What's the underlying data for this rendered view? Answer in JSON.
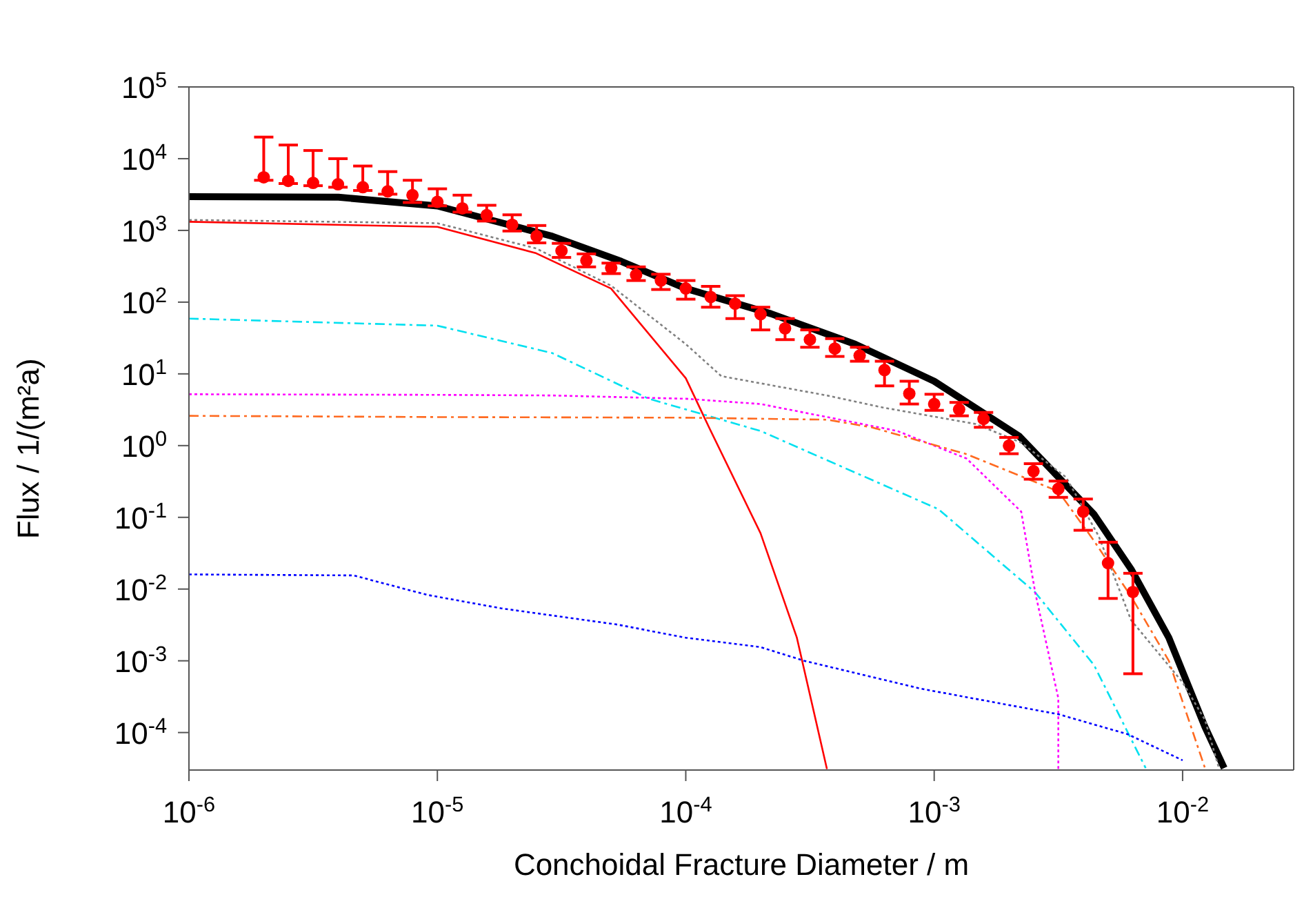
{
  "chart_data": {
    "type": "line",
    "xlabel": "Conchoidal Fracture Diameter / m",
    "ylabel": "Flux / 1/(m²a)",
    "log": "xy",
    "grid": false,
    "legend": false,
    "xlim": [
      1e-06,
      0.028
    ],
    "ylim": [
      3e-05,
      100000.0
    ],
    "xticks": [
      {
        "value": 1e-06,
        "label": "10$^{-6}$"
      },
      {
        "value": 1e-05,
        "label": "10$^{-5}$"
      },
      {
        "value": 0.0001,
        "label": "10$^{-4}$"
      },
      {
        "value": 0.001,
        "label": "10$^{-3}$"
      },
      {
        "value": 0.01,
        "label": "10$^{-2}$"
      }
    ],
    "yticks": [
      {
        "value": 0.0001,
        "label": "10$^{-4}$"
      },
      {
        "value": 0.001,
        "label": "10$^{-3}$"
      },
      {
        "value": 0.01,
        "label": "10$^{-2}$"
      },
      {
        "value": 0.1,
        "label": "10$^{-1}$"
      },
      {
        "value": 1,
        "label": "10$^{0}$"
      },
      {
        "value": 10,
        "label": "10$^{1}$"
      },
      {
        "value": 100,
        "label": "10$^{2}$"
      },
      {
        "value": 1000,
        "label": "10$^{3}$"
      },
      {
        "value": 10000,
        "label": "10$^{4}$"
      },
      {
        "value": 100000,
        "label": "10$^{5}$"
      }
    ],
    "series": [
      {
        "color": "#000000",
        "line_style": "solid",
        "x": [
          1e-06,
          4e-06,
          1e-05,
          2.9e-05,
          5.5e-05,
          0.0001,
          0.00022,
          0.00048,
          0.001,
          0.0022,
          0.0044,
          0.0062,
          0.0088,
          0.0123,
          0.0147
        ],
        "values": [
          2950,
          2900,
          2190,
          830,
          370,
          155,
          69,
          26,
          7.9,
          1.35,
          0.11,
          0.019,
          0.0021,
          0.00012,
          3.2e-05
        ]
      },
      {
        "color": "#808080",
        "line_style": "dotted",
        "x": [
          1e-06,
          1e-05,
          2.5e-05,
          5e-05,
          0.0001,
          0.000139,
          0.00037,
          0.00062,
          0.00147,
          0.00224,
          0.0034,
          0.0046,
          0.0062,
          0.01,
          0.0123,
          0.014
        ],
        "values": [
          1400,
          1260,
          560,
          170,
          26,
          9.3,
          5,
          3.4,
          2.0,
          1.1,
          0.36,
          0.054,
          0.0037,
          0.0005,
          0.00015,
          3.2e-05
        ]
      },
      {
        "color": "#ff0000",
        "line_style": "solid",
        "x": [
          1e-06,
          1e-05,
          2.5e-05,
          5e-05,
          0.0001,
          0.000124,
          0.0002,
          0.00028,
          0.00037
        ],
        "values": [
          1320,
          1120,
          480,
          155,
          8.7,
          1.8,
          0.06,
          0.0021,
          3.1e-05
        ]
      },
      {
        "color": "#00e0f0",
        "line_style": "dashed",
        "x": [
          1e-06,
          1e-05,
          2.9e-05,
          7.1e-05,
          0.0002,
          0.00104,
          0.00255,
          0.0044,
          0.0071
        ],
        "values": [
          59,
          47,
          19.5,
          4.5,
          1.6,
          0.13,
          0.009,
          0.00087,
          3.2e-05
        ]
      },
      {
        "color": "#ff00ff",
        "line_style": "dotted",
        "x": [
          1e-06,
          1e-05,
          2.9e-05,
          0.0001,
          0.0002,
          0.00037,
          0.00071,
          0.00135,
          0.00224,
          0.00255,
          0.00316,
          0.00316
        ],
        "values": [
          5.2,
          5.1,
          5.0,
          4.5,
          3.8,
          2.5,
          1.6,
          0.66,
          0.12,
          0.009,
          0.0003,
          3.1e-05
        ]
      },
      {
        "color": "#ff6a20",
        "line_style": "dashed",
        "x": [
          1e-06,
          1e-05,
          0.0001,
          0.00037,
          0.00056,
          0.00135,
          0.00316,
          0.0044,
          0.0062,
          0.0088,
          0.0123
        ],
        "values": [
          2.6,
          2.5,
          2.45,
          2.3,
          1.8,
          0.76,
          0.23,
          0.047,
          0.0079,
          0.001,
          3.2e-05
        ]
      },
      {
        "color": "#0000ff",
        "line_style": "dotted",
        "x": [
          1e-06,
          4.6e-06,
          9.1e-06,
          1.8e-05,
          5.3e-05,
          0.0001,
          0.0002,
          0.0003,
          0.00088,
          0.00316,
          0.006,
          0.01
        ],
        "values": [
          0.016,
          0.0155,
          0.0083,
          0.0054,
          0.0032,
          0.0021,
          0.00155,
          0.001,
          0.00041,
          0.00018,
          9.5e-05,
          4.1e-05
        ]
      },
      {
        "type": "scatter",
        "color": "#ff0000",
        "marker": "circle",
        "x": [
          2e-06,
          2.51e-06,
          3.16e-06,
          3.98e-06,
          5.01e-06,
          6.31e-06,
          7.94e-06,
          1e-05,
          1.26e-05,
          1.58e-05,
          2e-05,
          2.51e-05,
          3.16e-05,
          3.98e-05,
          5.01e-05,
          6.31e-05,
          7.94e-05,
          0.0001,
          0.000126,
          0.000158,
          0.0002,
          0.000251,
          0.000316,
          0.000398,
          0.000501,
          0.000631,
          0.000794,
          0.001,
          0.00126,
          0.00158,
          0.002,
          0.00251,
          0.00316,
          0.00398,
          0.00501,
          0.00631
        ],
        "values": [
          5500,
          4900,
          4600,
          4400,
          4000,
          3500,
          3100,
          2500,
          2030,
          1630,
          1200,
          830,
          520,
          380,
          300,
          240,
          200,
          155,
          118,
          95,
          68,
          43,
          30,
          22.5,
          18,
          11.3,
          5.3,
          3.8,
          3.2,
          2.35,
          1.0,
          0.44,
          0.25,
          0.12,
          0.023,
          0.0091
        ],
        "errors": [
          [
            5000,
            20000
          ],
          [
            4500,
            15500
          ],
          [
            4200,
            13000
          ],
          [
            4000,
            10000
          ],
          [
            3600,
            7900
          ],
          [
            3200,
            6600
          ],
          [
            2450,
            5000
          ],
          [
            2200,
            3800
          ],
          [
            1800,
            3100
          ],
          [
            1350,
            2240
          ],
          [
            980,
            1650
          ],
          [
            670,
            1170
          ],
          [
            420,
            660
          ],
          [
            310,
            470
          ],
          [
            250,
            350
          ],
          [
            200,
            310
          ],
          [
            150,
            245
          ],
          [
            110,
            200
          ],
          [
            85,
            166
          ],
          [
            59,
            123
          ],
          [
            41,
            85
          ],
          [
            30,
            59
          ],
          [
            23.5,
            41
          ],
          [
            17.5,
            31
          ],
          [
            15,
            23.5
          ],
          [
            6.8,
            15
          ],
          [
            3.8,
            7.9
          ],
          [
            3.1,
            5.2
          ],
          [
            2.6,
            4.0
          ],
          [
            1.8,
            2.9
          ],
          [
            0.77,
            1.3
          ],
          [
            0.34,
            0.56
          ],
          [
            0.19,
            0.32
          ],
          [
            0.066,
            0.18
          ],
          [
            0.0074,
            0.045
          ],
          [
            0.00066,
            0.0166
          ]
        ]
      }
    ]
  }
}
